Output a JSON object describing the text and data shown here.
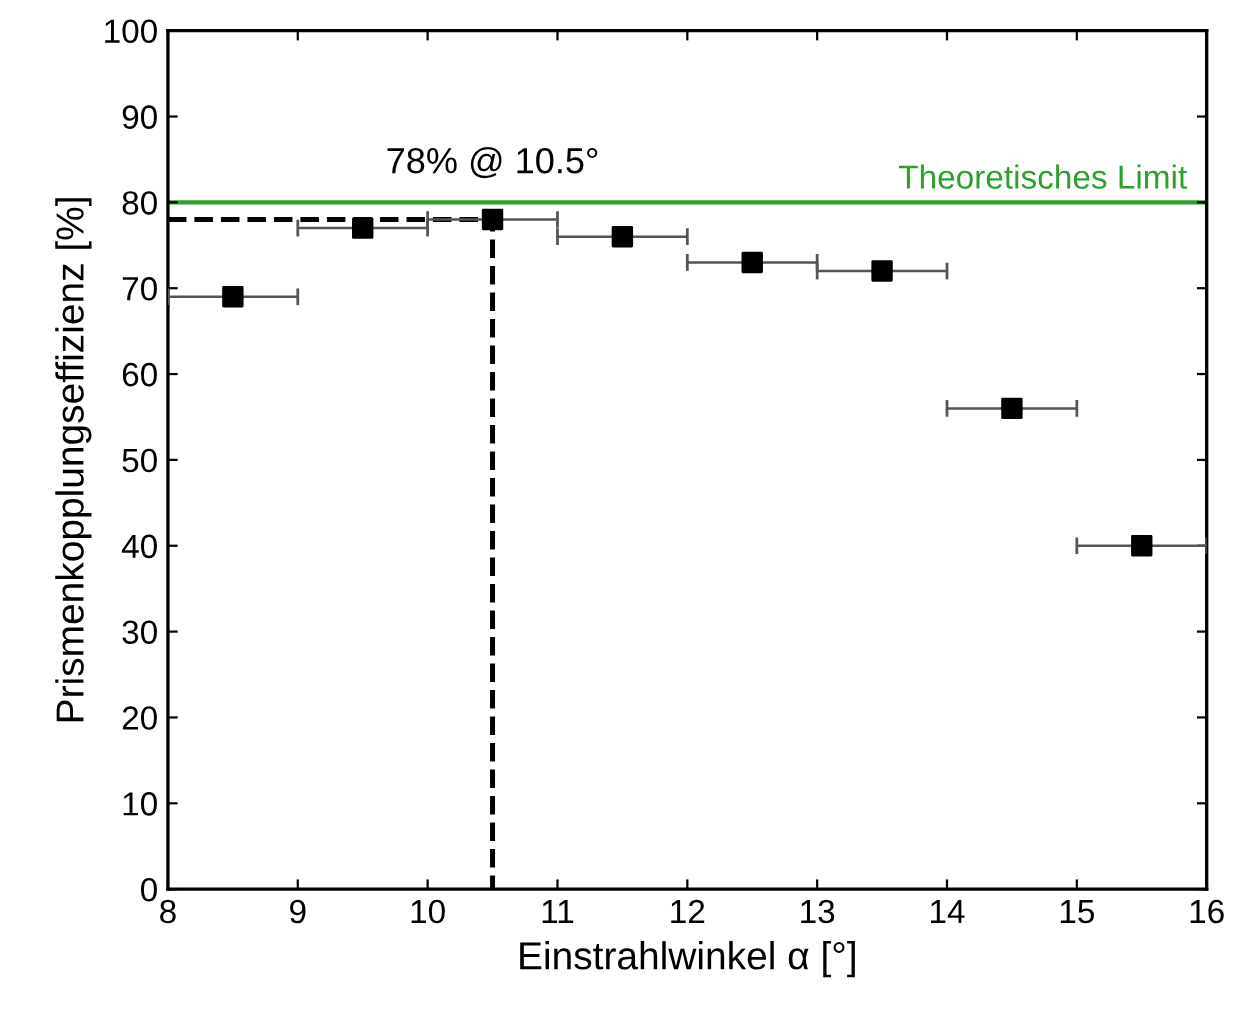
{
  "chart_data": {
    "type": "scatter",
    "xlabel": "Einstrahlwinkel α [°]",
    "ylabel": "Prismenkopplungseffizienz [%]",
    "xlim": [
      8,
      16
    ],
    "xticks": [
      8,
      9,
      10,
      11,
      12,
      13,
      14,
      15,
      16
    ],
    "ylim": [
      0,
      100
    ],
    "yticks": [
      0,
      10,
      20,
      30,
      40,
      50,
      60,
      70,
      80,
      90,
      100
    ],
    "grid": false,
    "series": [
      {
        "type": "line",
        "color": "#000000",
        "line_style": "dashed",
        "marker": "none",
        "x": [
          8,
          10.5,
          10.5
        ],
        "values": [
          78,
          78,
          0
        ]
      },
      {
        "color": "#000000",
        "marker": "square",
        "x": [
          8.5,
          9.5,
          10.5,
          11.5,
          12.5,
          13.5,
          14.5,
          15.5
        ],
        "values": [
          69,
          77,
          78,
          76,
          73,
          72,
          56,
          40
        ],
        "xerrors": [
          0.5,
          0.5,
          0.5,
          0.5,
          0.5,
          0.5,
          0.5,
          0.5
        ]
      }
    ],
    "ref_lines": [
      {
        "axis": "y",
        "value": 80,
        "label": "Theoretisches Limit",
        "color": "#2ca02c",
        "line_style": "solid"
      }
    ],
    "annotations": [
      {
        "text": "78% @ 10.5°",
        "x": 10.5,
        "y": 78
      }
    ]
  }
}
